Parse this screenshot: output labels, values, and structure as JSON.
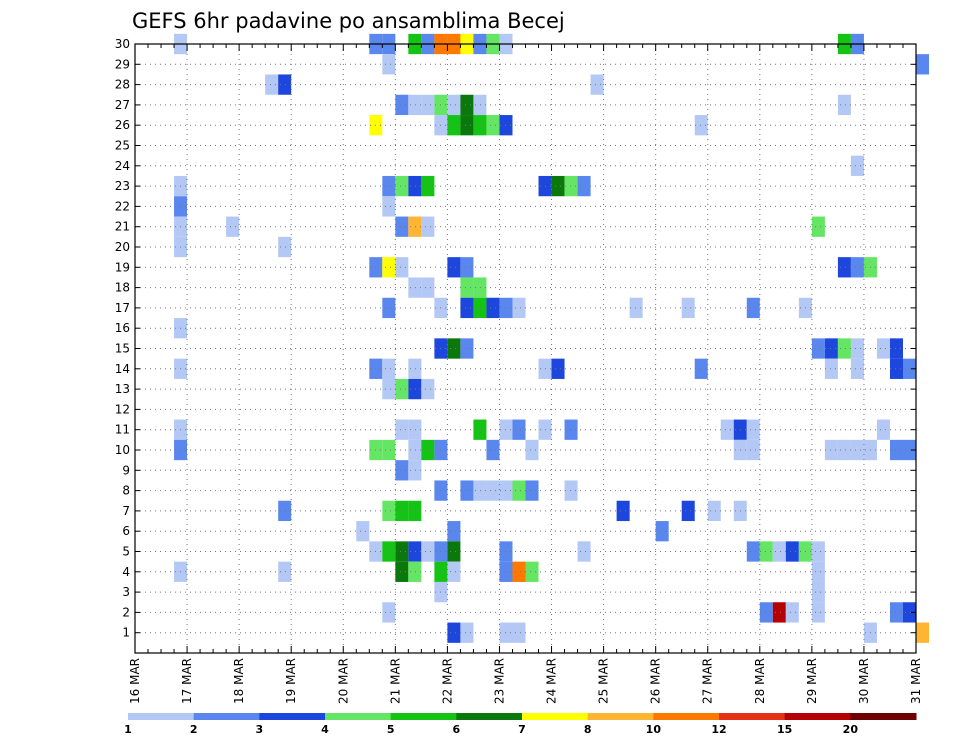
{
  "chart_data": {
    "type": "heatmap",
    "title": "GEFS 6hr padavine po ansamblima Becej",
    "xlabel": "",
    "ylabel": "",
    "y_categories": [
      1,
      2,
      3,
      4,
      5,
      6,
      7,
      8,
      9,
      10,
      11,
      12,
      13,
      14,
      15,
      16,
      17,
      18,
      19,
      20,
      21,
      22,
      23,
      24,
      25,
      26,
      27,
      28,
      29,
      30
    ],
    "x_tick_labels": [
      "16 MAR",
      "17 MAR",
      "18 MAR",
      "19 MAR",
      "20 MAR",
      "21 MAR",
      "22 MAR",
      "23 MAR",
      "24 MAR",
      "25 MAR",
      "26 MAR",
      "27 MAR",
      "28 MAR",
      "29 MAR",
      "30 MAR",
      "31 MAR"
    ],
    "x_step": "6hr",
    "grid": true,
    "colorbar": {
      "levels": [
        "1",
        "2",
        "3",
        "4",
        "5",
        "6",
        "7",
        "8",
        "10",
        "12",
        "15",
        "20"
      ],
      "colors": [
        "#b4c8f5",
        "#5a87ee",
        "#1c46dc",
        "#64e664",
        "#14c314",
        "#0a780a",
        "#ffff00",
        "#ffb432",
        "#ff7800",
        "#e63214",
        "#b40000",
        "#6e0000"
      ]
    },
    "cells": [
      {
        "member": 30,
        "step": 3,
        "level": 1
      },
      {
        "member": 30,
        "step": 18,
        "level": 2
      },
      {
        "member": 30,
        "step": 19,
        "level": 2
      },
      {
        "member": 30,
        "step": 21,
        "level": 5
      },
      {
        "member": 30,
        "step": 22,
        "level": 2
      },
      {
        "member": 30,
        "step": 23,
        "level": 9
      },
      {
        "member": 30,
        "step": 24,
        "level": 9
      },
      {
        "member": 30,
        "step": 25,
        "level": 7
      },
      {
        "member": 30,
        "step": 26,
        "level": 2
      },
      {
        "member": 30,
        "step": 27,
        "level": 4
      },
      {
        "member": 30,
        "step": 28,
        "level": 1
      },
      {
        "member": 30,
        "step": 54,
        "level": 5
      },
      {
        "member": 30,
        "step": 55,
        "level": 2
      },
      {
        "member": 29,
        "step": 19,
        "level": 1
      },
      {
        "member": 29,
        "step": 60,
        "level": 2
      },
      {
        "member": 28,
        "step": 10,
        "level": 1
      },
      {
        "member": 28,
        "step": 11,
        "level": 3
      },
      {
        "member": 28,
        "step": 35,
        "level": 1
      },
      {
        "member": 27,
        "step": 20,
        "level": 2
      },
      {
        "member": 27,
        "step": 21,
        "level": 1
      },
      {
        "member": 27,
        "step": 22,
        "level": 1
      },
      {
        "member": 27,
        "step": 23,
        "level": 4
      },
      {
        "member": 27,
        "step": 24,
        "level": 1
      },
      {
        "member": 27,
        "step": 25,
        "level": 6
      },
      {
        "member": 27,
        "step": 26,
        "level": 1
      },
      {
        "member": 27,
        "step": 54,
        "level": 1
      },
      {
        "member": 26,
        "step": 18,
        "level": 7
      },
      {
        "member": 26,
        "step": 23,
        "level": 1
      },
      {
        "member": 26,
        "step": 24,
        "level": 5
      },
      {
        "member": 26,
        "step": 25,
        "level": 6
      },
      {
        "member": 26,
        "step": 26,
        "level": 5
      },
      {
        "member": 26,
        "step": 27,
        "level": 4
      },
      {
        "member": 26,
        "step": 28,
        "level": 3
      },
      {
        "member": 26,
        "step": 43,
        "level": 1
      },
      {
        "member": 24,
        "step": 55,
        "level": 1
      },
      {
        "member": 23,
        "step": 3,
        "level": 1
      },
      {
        "member": 23,
        "step": 19,
        "level": 2
      },
      {
        "member": 23,
        "step": 20,
        "level": 4
      },
      {
        "member": 23,
        "step": 21,
        "level": 3
      },
      {
        "member": 23,
        "step": 22,
        "level": 5
      },
      {
        "member": 23,
        "step": 31,
        "level": 3
      },
      {
        "member": 23,
        "step": 32,
        "level": 6
      },
      {
        "member": 23,
        "step": 33,
        "level": 4
      },
      {
        "member": 23,
        "step": 34,
        "level": 2
      },
      {
        "member": 22,
        "step": 3,
        "level": 2
      },
      {
        "member": 22,
        "step": 19,
        "level": 1
      },
      {
        "member": 21,
        "step": 3,
        "level": 1
      },
      {
        "member": 21,
        "step": 7,
        "level": 1
      },
      {
        "member": 21,
        "step": 20,
        "level": 2
      },
      {
        "member": 21,
        "step": 21,
        "level": 8
      },
      {
        "member": 21,
        "step": 22,
        "level": 1
      },
      {
        "member": 21,
        "step": 52,
        "level": 4
      },
      {
        "member": 20,
        "step": 3,
        "level": 1
      },
      {
        "member": 20,
        "step": 11,
        "level": 1
      },
      {
        "member": 19,
        "step": 18,
        "level": 2
      },
      {
        "member": 19,
        "step": 19,
        "level": 7
      },
      {
        "member": 19,
        "step": 20,
        "level": 1
      },
      {
        "member": 19,
        "step": 24,
        "level": 3
      },
      {
        "member": 19,
        "step": 25,
        "level": 2
      },
      {
        "member": 19,
        "step": 54,
        "level": 3
      },
      {
        "member": 19,
        "step": 55,
        "level": 2
      },
      {
        "member": 19,
        "step": 56,
        "level": 4
      },
      {
        "member": 18,
        "step": 21,
        "level": 1
      },
      {
        "member": 18,
        "step": 22,
        "level": 1
      },
      {
        "member": 18,
        "step": 25,
        "level": 4
      },
      {
        "member": 18,
        "step": 26,
        "level": 4
      },
      {
        "member": 17,
        "step": 19,
        "level": 2
      },
      {
        "member": 17,
        "step": 23,
        "level": 1
      },
      {
        "member": 17,
        "step": 25,
        "level": 3
      },
      {
        "member": 17,
        "step": 26,
        "level": 5
      },
      {
        "member": 17,
        "step": 27,
        "level": 3
      },
      {
        "member": 17,
        "step": 28,
        "level": 2
      },
      {
        "member": 17,
        "step": 29,
        "level": 1
      },
      {
        "member": 17,
        "step": 38,
        "level": 1
      },
      {
        "member": 17,
        "step": 42,
        "level": 1
      },
      {
        "member": 17,
        "step": 47,
        "level": 2
      },
      {
        "member": 17,
        "step": 51,
        "level": 1
      },
      {
        "member": 16,
        "step": 3,
        "level": 1
      },
      {
        "member": 15,
        "step": 23,
        "level": 3
      },
      {
        "member": 15,
        "step": 24,
        "level": 6
      },
      {
        "member": 15,
        "step": 25,
        "level": 2
      },
      {
        "member": 15,
        "step": 52,
        "level": 2
      },
      {
        "member": 15,
        "step": 53,
        "level": 3
      },
      {
        "member": 15,
        "step": 54,
        "level": 4
      },
      {
        "member": 15,
        "step": 55,
        "level": 1
      },
      {
        "member": 15,
        "step": 57,
        "level": 1
      },
      {
        "member": 15,
        "step": 58,
        "level": 3
      },
      {
        "member": 14,
        "step": 3,
        "level": 1
      },
      {
        "member": 14,
        "step": 18,
        "level": 2
      },
      {
        "member": 14,
        "step": 19,
        "level": 1
      },
      {
        "member": 14,
        "step": 21,
        "level": 1
      },
      {
        "member": 14,
        "step": 31,
        "level": 1
      },
      {
        "member": 14,
        "step": 32,
        "level": 3
      },
      {
        "member": 14,
        "step": 43,
        "level": 2
      },
      {
        "member": 14,
        "step": 53,
        "level": 1
      },
      {
        "member": 14,
        "step": 55,
        "level": 1
      },
      {
        "member": 14,
        "step": 58,
        "level": 3
      },
      {
        "member": 14,
        "step": 59,
        "level": 2
      },
      {
        "member": 13,
        "step": 19,
        "level": 1
      },
      {
        "member": 13,
        "step": 20,
        "level": 4
      },
      {
        "member": 13,
        "step": 21,
        "level": 3
      },
      {
        "member": 13,
        "step": 22,
        "level": 1
      },
      {
        "member": 11,
        "step": 3,
        "level": 1
      },
      {
        "member": 11,
        "step": 20,
        "level": 1
      },
      {
        "member": 11,
        "step": 21,
        "level": 1
      },
      {
        "member": 11,
        "step": 26,
        "level": 5
      },
      {
        "member": 11,
        "step": 28,
        "level": 1
      },
      {
        "member": 11,
        "step": 29,
        "level": 2
      },
      {
        "member": 11,
        "step": 31,
        "level": 1
      },
      {
        "member": 11,
        "step": 33,
        "level": 2
      },
      {
        "member": 11,
        "step": 45,
        "level": 1
      },
      {
        "member": 11,
        "step": 46,
        "level": 3
      },
      {
        "member": 11,
        "step": 47,
        "level": 1
      },
      {
        "member": 11,
        "step": 57,
        "level": 1
      },
      {
        "member": 10,
        "step": 3,
        "level": 2
      },
      {
        "member": 10,
        "step": 18,
        "level": 4
      },
      {
        "member": 10,
        "step": 19,
        "level": 4
      },
      {
        "member": 10,
        "step": 21,
        "level": 1
      },
      {
        "member": 10,
        "step": 22,
        "level": 5
      },
      {
        "member": 10,
        "step": 23,
        "level": 2
      },
      {
        "member": 10,
        "step": 27,
        "level": 2
      },
      {
        "member": 10,
        "step": 30,
        "level": 1
      },
      {
        "member": 10,
        "step": 46,
        "level": 1
      },
      {
        "member": 10,
        "step": 47,
        "level": 1
      },
      {
        "member": 10,
        "step": 53,
        "level": 1
      },
      {
        "member": 10,
        "step": 54,
        "level": 1
      },
      {
        "member": 10,
        "step": 55,
        "level": 1
      },
      {
        "member": 10,
        "step": 56,
        "level": 1
      },
      {
        "member": 10,
        "step": 58,
        "level": 2
      },
      {
        "member": 10,
        "step": 59,
        "level": 2
      },
      {
        "member": 9,
        "step": 20,
        "level": 2
      },
      {
        "member": 9,
        "step": 21,
        "level": 1
      },
      {
        "member": 8,
        "step": 23,
        "level": 2
      },
      {
        "member": 8,
        "step": 25,
        "level": 2
      },
      {
        "member": 8,
        "step": 26,
        "level": 1
      },
      {
        "member": 8,
        "step": 27,
        "level": 1
      },
      {
        "member": 8,
        "step": 28,
        "level": 1
      },
      {
        "member": 8,
        "step": 29,
        "level": 4
      },
      {
        "member": 8,
        "step": 30,
        "level": 2
      },
      {
        "member": 8,
        "step": 33,
        "level": 1
      },
      {
        "member": 7,
        "step": 11,
        "level": 2
      },
      {
        "member": 7,
        "step": 19,
        "level": 4
      },
      {
        "member": 7,
        "step": 20,
        "level": 5
      },
      {
        "member": 7,
        "step": 21,
        "level": 5
      },
      {
        "member": 7,
        "step": 37,
        "level": 3
      },
      {
        "member": 7,
        "step": 42,
        "level": 3
      },
      {
        "member": 7,
        "step": 44,
        "level": 1
      },
      {
        "member": 7,
        "step": 46,
        "level": 1
      },
      {
        "member": 6,
        "step": 17,
        "level": 1
      },
      {
        "member": 6,
        "step": 24,
        "level": 2
      },
      {
        "member": 6,
        "step": 40,
        "level": 2
      },
      {
        "member": 5,
        "step": 18,
        "level": 1
      },
      {
        "member": 5,
        "step": 19,
        "level": 5
      },
      {
        "member": 5,
        "step": 20,
        "level": 6
      },
      {
        "member": 5,
        "step": 21,
        "level": 3
      },
      {
        "member": 5,
        "step": 22,
        "level": 1
      },
      {
        "member": 5,
        "step": 23,
        "level": 2
      },
      {
        "member": 5,
        "step": 24,
        "level": 6
      },
      {
        "member": 5,
        "step": 28,
        "level": 2
      },
      {
        "member": 5,
        "step": 34,
        "level": 1
      },
      {
        "member": 5,
        "step": 47,
        "level": 2
      },
      {
        "member": 5,
        "step": 48,
        "level": 4
      },
      {
        "member": 5,
        "step": 49,
        "level": 1
      },
      {
        "member": 5,
        "step": 50,
        "level": 3
      },
      {
        "member": 5,
        "step": 51,
        "level": 4
      },
      {
        "member": 5,
        "step": 52,
        "level": 1
      },
      {
        "member": 4,
        "step": 3,
        "level": 1
      },
      {
        "member": 4,
        "step": 11,
        "level": 1
      },
      {
        "member": 4,
        "step": 20,
        "level": 6
      },
      {
        "member": 4,
        "step": 21,
        "level": 4
      },
      {
        "member": 4,
        "step": 23,
        "level": 5
      },
      {
        "member": 4,
        "step": 24,
        "level": 1
      },
      {
        "member": 4,
        "step": 28,
        "level": 2
      },
      {
        "member": 4,
        "step": 29,
        "level": 9
      },
      {
        "member": 4,
        "step": 30,
        "level": 4
      },
      {
        "member": 4,
        "step": 52,
        "level": 1
      },
      {
        "member": 3,
        "step": 23,
        "level": 1
      },
      {
        "member": 3,
        "step": 52,
        "level": 1
      },
      {
        "member": 2,
        "step": 19,
        "level": 1
      },
      {
        "member": 2,
        "step": 48,
        "level": 2
      },
      {
        "member": 2,
        "step": 49,
        "level": 11
      },
      {
        "member": 2,
        "step": 50,
        "level": 1
      },
      {
        "member": 2,
        "step": 52,
        "level": 1
      },
      {
        "member": 2,
        "step": 58,
        "level": 2
      },
      {
        "member": 2,
        "step": 59,
        "level": 3
      },
      {
        "member": 1,
        "step": 24,
        "level": 3
      },
      {
        "member": 1,
        "step": 25,
        "level": 1
      },
      {
        "member": 1,
        "step": 28,
        "level": 1
      },
      {
        "member": 1,
        "step": 29,
        "level": 1
      },
      {
        "member": 1,
        "step": 56,
        "level": 1
      },
      {
        "member": 1,
        "step": 60,
        "level": 8
      }
    ]
  }
}
